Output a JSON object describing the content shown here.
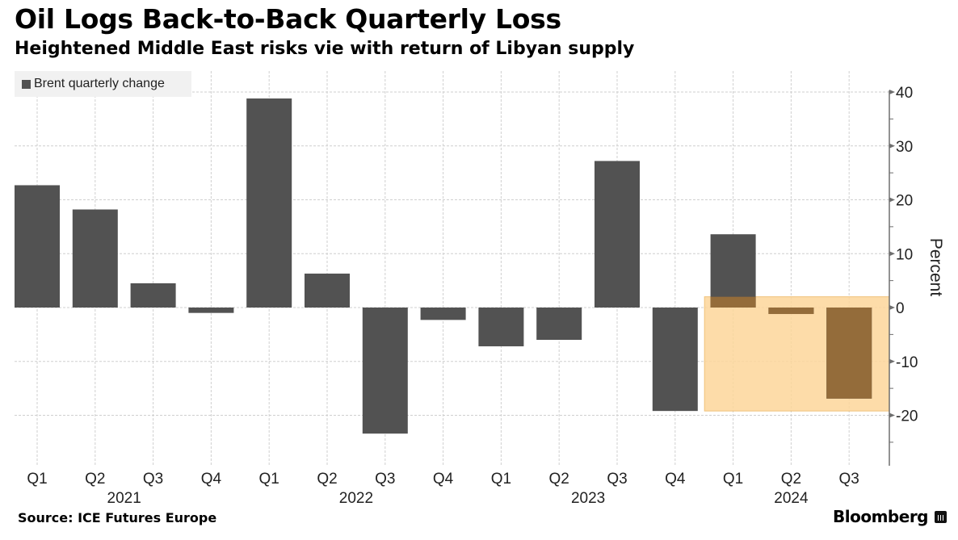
{
  "chart_data": {
    "type": "bar",
    "title": "Oil Logs Back-to-Back Quarterly Loss",
    "subtitle": "Heightened Middle East risks vie with return of Libyan supply",
    "xlabel": "",
    "ylabel": "Percent",
    "ylim": [
      -29,
      45
    ],
    "yticks": [
      40,
      30,
      20,
      10,
      0,
      -10,
      -20
    ],
    "ytick_labels": [
      "40",
      "30",
      "20",
      "10",
      "0",
      "-10",
      "-20"
    ],
    "grid": true,
    "legend": {
      "placement": "top-left",
      "entries": [
        "Brent quarterly change"
      ]
    },
    "categories": [
      "Q1",
      "Q2",
      "Q3",
      "Q4",
      "Q1",
      "Q2",
      "Q3",
      "Q4",
      "Q1",
      "Q2",
      "Q3",
      "Q4",
      "Q1",
      "Q2",
      "Q3"
    ],
    "year_groups": [
      {
        "label": "2021",
        "center_index": 1.5
      },
      {
        "label": "2022",
        "center_index": 5.5
      },
      {
        "label": "2023",
        "center_index": 9.5
      },
      {
        "label": "2024",
        "center_index": 13
      }
    ],
    "series": [
      {
        "name": "Brent quarterly change",
        "color": "#525252",
        "values": [
          22.7,
          18.2,
          4.5,
          -1.0,
          38.8,
          6.3,
          -23.4,
          -2.3,
          -7.2,
          -6.0,
          27.2,
          -19.2,
          13.6,
          -1.2,
          -16.9
        ]
      }
    ],
    "highlight": {
      "from_index": 12,
      "to_index": 14,
      "y_range": [
        -19.2,
        2.0
      ],
      "color": "#fdd69a"
    },
    "source": "Source: ICE Futures Europe",
    "brand": "Bloomberg"
  },
  "colors": {
    "bar": "#525252",
    "bar_in_highlight": "#946c3a",
    "grid": "#cfcfcf",
    "axis": "#6e6e6e",
    "legend_bg": "#f1f1f1"
  }
}
